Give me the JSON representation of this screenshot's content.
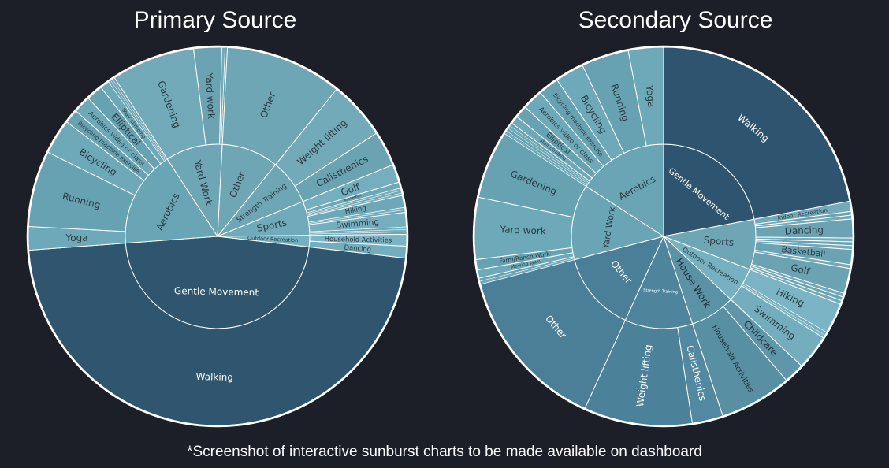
{
  "footnote": "*Screenshot of interactive sunburst charts to be made available on dashboard",
  "colors": {
    "background": "#1c1f27",
    "gentle_movement": "#30566f",
    "gentle_movement_alt": "#2f5470",
    "aerobics": "#6aa5b6",
    "yard_work": "#6ea6b5",
    "strength_training": "#4e859c",
    "sports": "#71aaba",
    "house_work": "#5b92a6",
    "outdoor_recreation": "#77b0c0",
    "other_category": "#4a7f97",
    "stroke": "#ffffff"
  },
  "chart_data": [
    {
      "type": "sunburst",
      "title": "Primary Source",
      "categories": [
        {
          "name": "Gentle Movement",
          "value": 47.0,
          "color": "#30566f",
          "text": "#ffffff",
          "children": [
            {
              "name": "Walking",
              "value": 47.0
            }
          ]
        },
        {
          "name": "Aerobics",
          "value": 17.0,
          "color": "#6aa5b6",
          "text": "#2b3a44",
          "children": [
            {
              "name": "Yoga",
              "value": 2.0
            },
            {
              "name": "Running",
              "value": 6.5
            },
            {
              "name": "Bicycling",
              "value": 3.0
            },
            {
              "name": "Bicycling machine exercise",
              "value": 1.2
            },
            {
              "name": "Aerobics video or class",
              "value": 1.5
            },
            {
              "name": "Elliptical",
              "value": 1.4
            },
            {
              "name": "Stair climbing",
              "value": 0.8
            },
            {
              "name": "",
              "value": 0.2
            },
            {
              "name": "",
              "value": 0.2
            },
            {
              "name": "",
              "value": 0.2
            }
          ]
        },
        {
          "name": "Yard Work",
          "value": 10.0,
          "color": "#6ea6b5",
          "text": "#2b3a44",
          "children": [
            {
              "name": "Gardening",
              "value": 7.5
            },
            {
              "name": "Yard work",
              "value": 2.5
            },
            {
              "name": "",
              "value": 0.3
            },
            {
              "name": "",
              "value": 0.2
            }
          ]
        },
        {
          "name": "Other",
          "value": 10.0,
          "color": "#6ea6b5",
          "text": "#2b3a44",
          "children": [
            {
              "name": "Other",
              "value": 10.0
            }
          ]
        },
        {
          "name": "Strength Training",
          "value": 8.0,
          "color": "#6ea6b5",
          "text": "#2b3a44",
          "children": [
            {
              "name": "Weight lifting",
              "value": 5.0
            },
            {
              "name": "Calisthenics",
              "value": 3.0
            }
          ]
        },
        {
          "name": "Sports",
          "value": 6.0,
          "color": "#71aaba",
          "text": "#2b3a44",
          "children": [
            {
              "name": "Golf",
              "value": 1.5
            },
            {
              "name": "Basketball",
              "value": 0.5
            },
            {
              "name": "",
              "value": 0.2
            },
            {
              "name": "",
              "value": 0.2
            },
            {
              "name": "",
              "value": 0.2
            },
            {
              "name": "Hiking",
              "value": 1.0
            },
            {
              "name": "",
              "value": 0.2
            },
            {
              "name": "",
              "value": 0.2
            },
            {
              "name": "Swimming",
              "value": 1.2
            },
            {
              "name": "",
              "value": 0.2
            },
            {
              "name": "",
              "value": 0.2
            },
            {
              "name": "",
              "value": 0.2
            }
          ]
        },
        {
          "name": "Outdoor Recreation",
          "value": 2.0,
          "color": "#77b0c0",
          "text": "#2b3a44",
          "children": [
            {
              "name": "Household Activities",
              "value": 1.0
            },
            {
              "name": "Dancing",
              "value": 1.0
            }
          ]
        }
      ]
    },
    {
      "type": "sunburst",
      "title": "Secondary Source",
      "categories": [
        {
          "name": "Gentle Movement",
          "value": 25.0,
          "color": "#2f5470",
          "text": "#ffffff",
          "children": [
            {
              "name": "Walking",
              "value": 25.0
            }
          ]
        },
        {
          "name": "Sports",
          "value": 10.0,
          "color": "#6ea6b5",
          "text": "#2b3a44",
          "children": [
            {
              "name": "Indoor Recreation",
              "value": 0.8
            },
            {
              "name": "",
              "value": 0.3
            },
            {
              "name": "",
              "value": 0.3
            },
            {
              "name": "Dancing",
              "value": 1.5
            },
            {
              "name": "",
              "value": 0.3
            },
            {
              "name": "",
              "value": 0.3
            },
            {
              "name": "",
              "value": 0.3
            },
            {
              "name": "Basketball",
              "value": 1.2
            },
            {
              "name": "",
              "value": 0.3
            },
            {
              "name": "Golf",
              "value": 2.0
            },
            {
              "name": "",
              "value": 0.3
            },
            {
              "name": "",
              "value": 0.3
            },
            {
              "name": "",
              "value": 0.3
            }
          ]
        },
        {
          "name": "Outdoor Recreation",
          "value": 7.0,
          "color": "#77b0c0",
          "text": "#2b3a44",
          "children": [
            {
              "name": "Hiking",
              "value": 3.0
            },
            {
              "name": "",
              "value": 0.3
            },
            {
              "name": "",
              "value": 0.3
            },
            {
              "name": "Swimming",
              "value": 3.4
            }
          ]
        },
        {
          "name": "House Work",
          "value": 9.0,
          "color": "#5b92a6",
          "text": "#1f2e38",
          "children": [
            {
              "name": "Childcare",
              "value": 2.0
            },
            {
              "name": "Household Activities",
              "value": 7.0
            }
          ]
        },
        {
          "name": "Strength Training",
          "value": 13.5,
          "color": "#4e859c",
          "text": "#ffffff",
          "children": [
            {
              "name": "Calisthenics",
              "value": 3.0
            },
            {
              "name": "Weight lifting",
              "value": 10.5
            }
          ]
        },
        {
          "name": "Other",
          "value": 16.0,
          "color": "#4a7f97",
          "text": "#ffffff",
          "children": [
            {
              "name": "Other",
              "value": 16.0
            }
          ]
        },
        {
          "name": "Yard Work",
          "value": 15.0,
          "color": "#6aa5b6",
          "text": "#2b3a44",
          "children": [
            {
              "name": "",
              "value": 0.3
            },
            {
              "name": "",
              "value": 0.3
            },
            {
              "name": "Mowing lawn",
              "value": 0.8
            },
            {
              "name": "Farm/Ranch Work",
              "value": 1.0
            },
            {
              "name": "Yard work",
              "value": 6.0
            },
            {
              "name": "Gardening",
              "value": 6.6
            }
          ]
        },
        {
          "name": "Aerobics",
          "value": 18.0,
          "color": "#6aa5b6",
          "text": "#2b3a44",
          "children": [
            {
              "name": "",
              "value": 0.3
            },
            {
              "name": "",
              "value": 0.3
            },
            {
              "name": "",
              "value": 0.3
            },
            {
              "name": "",
              "value": 0.3
            },
            {
              "name": "Stair climbing",
              "value": 0.8
            },
            {
              "name": "Elliptical",
              "value": 1.2
            },
            {
              "name": "Aerobics video or class",
              "value": 2.0
            },
            {
              "name": "Bicycling machine exercise",
              "value": 2.0
            },
            {
              "name": "Bicycling",
              "value": 2.8
            },
            {
              "name": "Running",
              "value": 4.6
            },
            {
              "name": "Yoga",
              "value": 3.4
            }
          ]
        }
      ]
    }
  ]
}
